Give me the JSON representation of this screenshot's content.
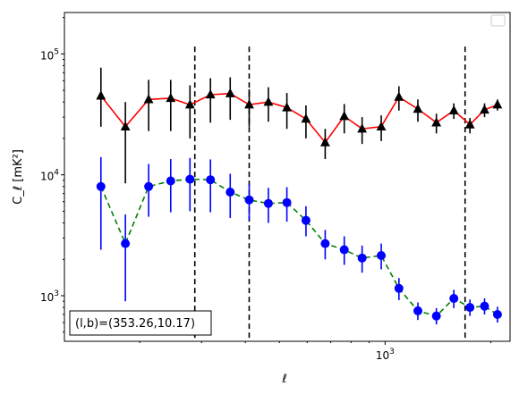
{
  "chart_data": {
    "type": "scatter",
    "xscale": "log",
    "yscale": "log",
    "xlabel": "ℓ",
    "ylabel": "C_ℓ [mK²]",
    "xlim": [
      122,
      2270
    ],
    "ylim": [
      420,
      220000
    ],
    "x_ticks": [
      {
        "value": 1000,
        "label": "10^3"
      }
    ],
    "y_ticks": [
      {
        "value": 1000,
        "label": "10^3"
      },
      {
        "value": 10000,
        "label": "10^4"
      },
      {
        "value": 100000,
        "label": "10^5"
      }
    ],
    "vlines": [
      287,
      410,
      1690
    ],
    "annotation": "(l,b)=(353.26,10.17)",
    "legend_placement": "top-right",
    "grid": false,
    "series": [
      {
        "marker": "triangle",
        "marker_color": "#000000",
        "line_color": "#ff0000",
        "line_style": "solid",
        "errorbar_color": "#000000",
        "x": [
          155,
          182,
          212,
          245,
          278,
          318,
          362,
          410,
          465,
          525,
          595,
          675,
          765,
          860,
          975,
          1095,
          1240,
          1400,
          1570,
          1745,
          1920,
          2090
        ],
        "y": [
          45000,
          25000,
          42000,
          43000,
          38000,
          46000,
          47000,
          38000,
          40000,
          36000,
          29000,
          18500,
          30500,
          24000,
          25000,
          44000,
          35000,
          27000,
          34000,
          26000,
          34500,
          38000
        ],
        "yerr_low": [
          20000,
          16500,
          19000,
          20000,
          18000,
          19000,
          18500,
          13000,
          12500,
          12000,
          9000,
          5000,
          8500,
          6000,
          6000,
          10000,
          7500,
          5000,
          5000,
          4000,
          4500,
          4000
        ],
        "yerr_high": [
          32000,
          15000,
          19000,
          18000,
          17000,
          17000,
          17000,
          13000,
          13000,
          11500,
          8500,
          5500,
          8000,
          6000,
          6000,
          10000,
          7000,
          5000,
          5000,
          3500,
          4500,
          4000
        ]
      },
      {
        "marker": "circle",
        "marker_color": "#0000ff",
        "line_color": "#008000",
        "line_style": "dashed",
        "errorbar_color": "#0000ff",
        "x": [
          155,
          182,
          212,
          245,
          278,
          318,
          362,
          410,
          465,
          525,
          595,
          675,
          765,
          860,
          975,
          1095,
          1240,
          1400,
          1570,
          1745,
          1920,
          2090
        ],
        "y": [
          8000,
          2700,
          8000,
          8900,
          9200,
          9100,
          7200,
          6200,
          5800,
          5900,
          4200,
          2700,
          2400,
          2050,
          2150,
          1150,
          750,
          680,
          950,
          800,
          820,
          700
        ],
        "yerr_low": [
          5600,
          1800,
          3500,
          4000,
          4200,
          4200,
          2800,
          2000,
          1800,
          1800,
          1100,
          700,
          600,
          500,
          500,
          230,
          120,
          100,
          160,
          120,
          120,
          100
        ],
        "yerr_high": [
          6000,
          2000,
          4300,
          4600,
          4600,
          4300,
          3000,
          2200,
          2000,
          2000,
          1300,
          800,
          700,
          550,
          550,
          250,
          130,
          110,
          170,
          130,
          130,
          110
        ]
      }
    ]
  }
}
